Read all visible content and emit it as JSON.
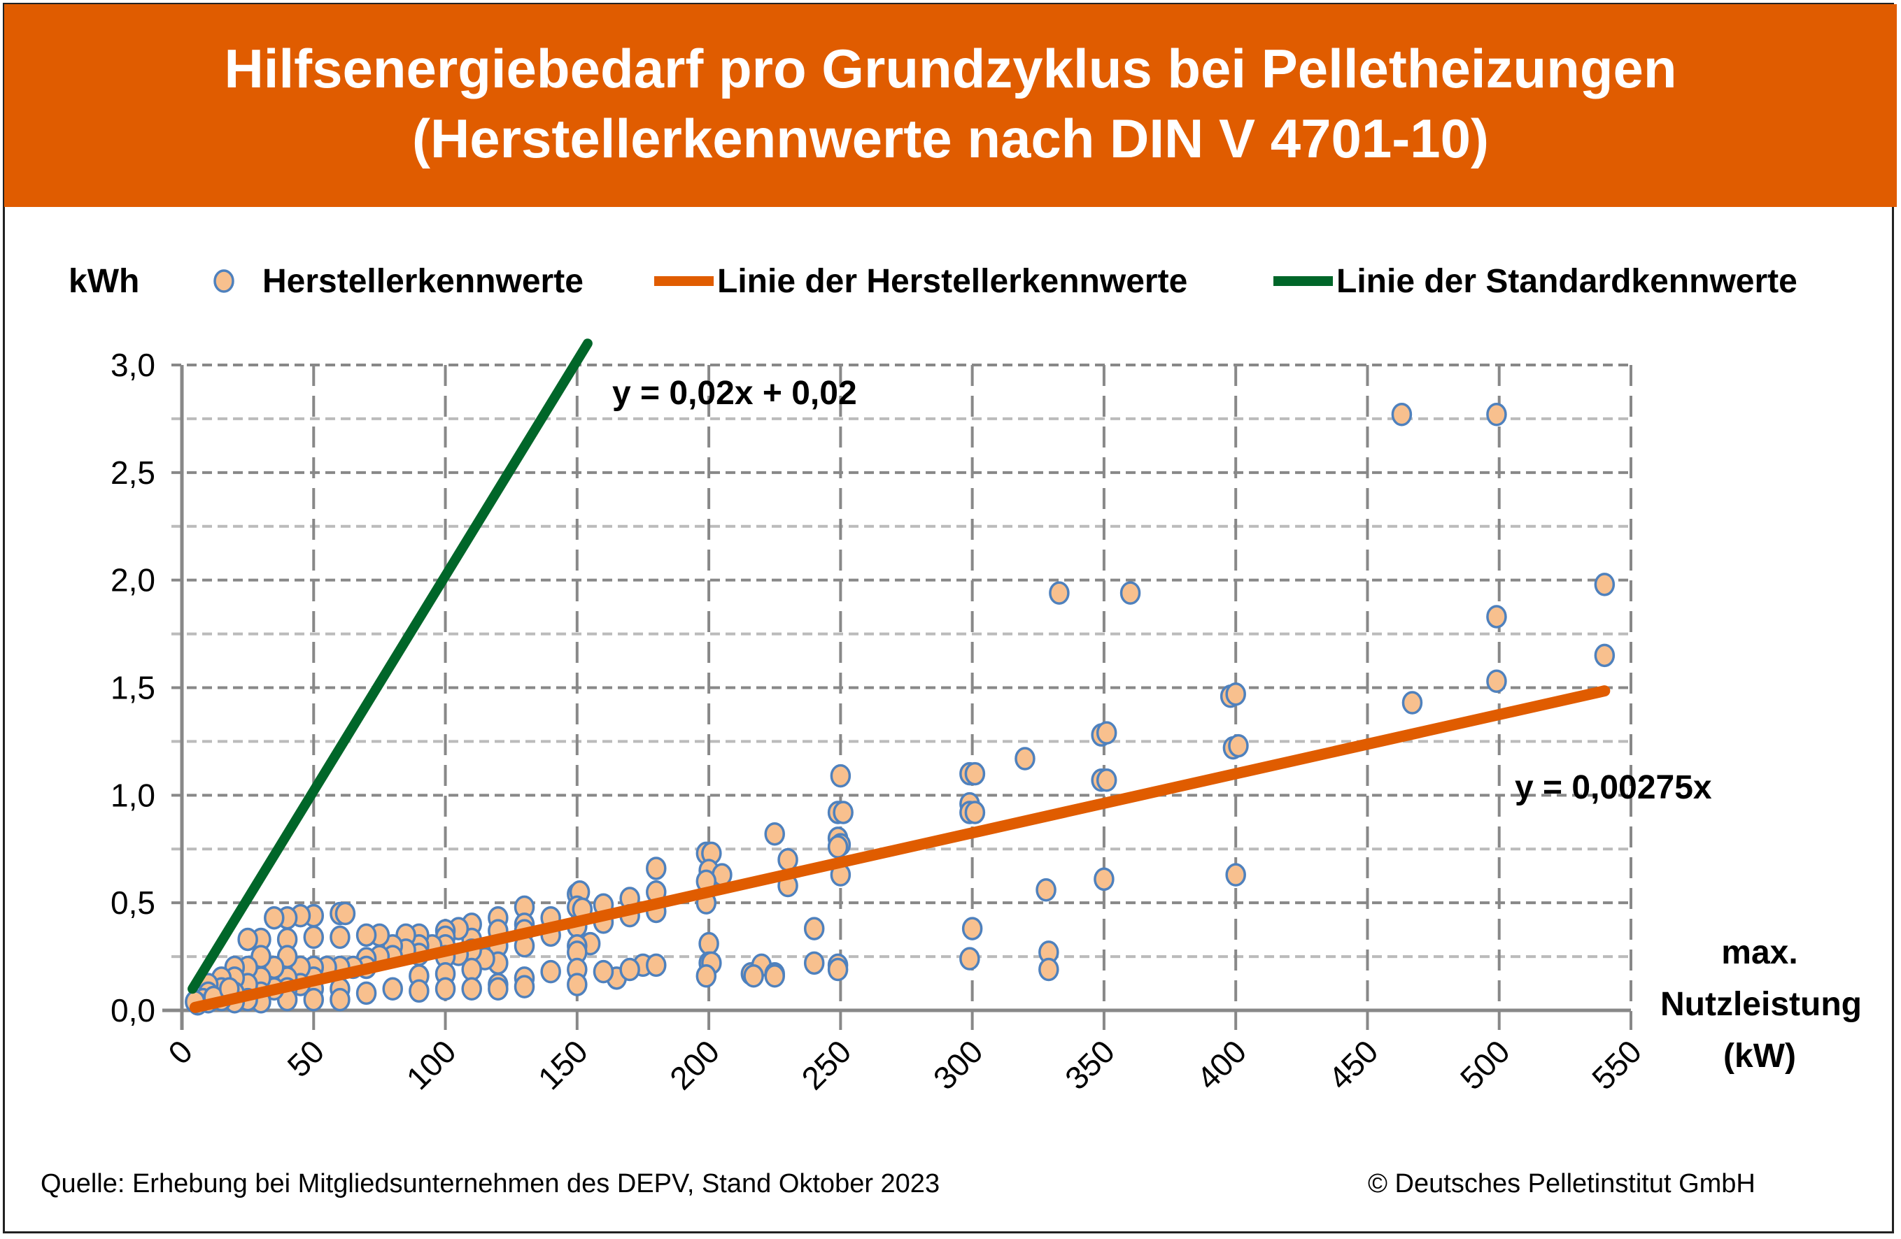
{
  "chart_data": {
    "type": "scatter",
    "title": "Hilfsenergiebedarf pro Grundzyklus bei Pelletheizungen",
    "subtitle": "(Herstellerkennwerte nach DIN V 4701-10)",
    "ylabel": "kWh",
    "xlabel": [
      "max.",
      "Nutzleistung",
      "(kW)"
    ],
    "xlim": [
      0,
      550
    ],
    "ylim": [
      0,
      3.0
    ],
    "xticks": [
      "0",
      "50",
      "100",
      "150",
      "200",
      "250",
      "300",
      "350",
      "400",
      "450",
      "500",
      "550"
    ],
    "yticks": [
      "0,0",
      "0,5",
      "1,0",
      "1,5",
      "2,0",
      "2,5",
      "3,0"
    ],
    "grid": true,
    "legend_position": "top",
    "legend": [
      "Herstellerkennwerte",
      "Linie der Herstellerkennwerte",
      "Linie der Standardkennwerte"
    ],
    "colors": {
      "points_fill": "#F8C08E",
      "points_stroke": "#4F81BD",
      "hersteller_line": "#E05C00",
      "standard_line": "#006629",
      "title_bg": "#E05C00"
    },
    "series": [
      {
        "name": "Herstellerkennwerte",
        "type": "scatter",
        "points": [
          [
            463,
            2.77
          ],
          [
            499,
            2.77
          ],
          [
            333,
            1.94
          ],
          [
            360,
            1.94
          ],
          [
            540,
            1.98
          ],
          [
            499,
            1.83
          ],
          [
            540,
            1.65
          ],
          [
            499,
            1.53
          ],
          [
            467,
            1.43
          ],
          [
            398,
            1.46
          ],
          [
            400,
            1.47
          ],
          [
            399,
            1.22
          ],
          [
            401,
            1.23
          ],
          [
            349,
            1.28
          ],
          [
            351,
            1.29
          ],
          [
            349,
            1.07
          ],
          [
            351,
            1.07
          ],
          [
            320,
            1.17
          ],
          [
            299,
            1.1
          ],
          [
            301,
            1.1
          ],
          [
            299,
            0.96
          ],
          [
            299,
            0.92
          ],
          [
            301,
            0.92
          ],
          [
            350,
            0.61
          ],
          [
            400,
            0.63
          ],
          [
            328,
            0.56
          ],
          [
            300,
            0.38
          ],
          [
            299,
            0.24
          ],
          [
            329,
            0.27
          ],
          [
            329,
            0.19
          ],
          [
            250,
            1.09
          ],
          [
            249,
            0.92
          ],
          [
            251,
            0.92
          ],
          [
            249,
            0.8
          ],
          [
            250,
            0.77
          ],
          [
            249,
            0.76
          ],
          [
            250,
            0.63
          ],
          [
            225,
            0.82
          ],
          [
            230,
            0.7
          ],
          [
            230,
            0.58
          ],
          [
            240,
            0.38
          ],
          [
            240,
            0.22
          ],
          [
            249,
            0.21
          ],
          [
            249,
            0.19
          ],
          [
            216,
            0.17
          ],
          [
            220,
            0.21
          ],
          [
            225,
            0.17
          ],
          [
            225,
            0.16
          ],
          [
            217,
            0.16
          ],
          [
            199,
            0.73
          ],
          [
            201,
            0.73
          ],
          [
            200,
            0.65
          ],
          [
            205,
            0.63
          ],
          [
            199,
            0.6
          ],
          [
            199,
            0.5
          ],
          [
            200,
            0.31
          ],
          [
            200,
            0.22
          ],
          [
            201,
            0.22
          ],
          [
            199,
            0.16
          ],
          [
            180,
            0.66
          ],
          [
            180,
            0.55
          ],
          [
            180,
            0.46
          ],
          [
            175,
            0.21
          ],
          [
            180,
            0.21
          ],
          [
            170,
            0.52
          ],
          [
            170,
            0.44
          ],
          [
            165,
            0.15
          ],
          [
            170,
            0.19
          ],
          [
            160,
            0.49
          ],
          [
            160,
            0.41
          ],
          [
            155,
            0.31
          ],
          [
            160,
            0.18
          ],
          [
            150,
            0.54
          ],
          [
            151,
            0.55
          ],
          [
            150,
            0.48
          ],
          [
            150,
            0.39
          ],
          [
            150,
            0.3
          ],
          [
            150,
            0.27
          ],
          [
            150,
            0.19
          ],
          [
            150,
            0.12
          ],
          [
            152,
            0.47
          ],
          [
            140,
            0.43
          ],
          [
            140,
            0.35
          ],
          [
            140,
            0.18
          ],
          [
            130,
            0.48
          ],
          [
            130,
            0.4
          ],
          [
            130,
            0.37
          ],
          [
            130,
            0.3
          ],
          [
            130,
            0.15
          ],
          [
            130,
            0.11
          ],
          [
            120,
            0.43
          ],
          [
            120,
            0.37
          ],
          [
            120,
            0.3
          ],
          [
            120,
            0.22
          ],
          [
            120,
            0.12
          ],
          [
            120,
            0.1
          ],
          [
            115,
            0.24
          ],
          [
            110,
            0.4
          ],
          [
            110,
            0.33
          ],
          [
            110,
            0.28
          ],
          [
            110,
            0.19
          ],
          [
            110,
            0.1
          ],
          [
            105,
            0.38
          ],
          [
            105,
            0.26
          ],
          [
            100,
            0.37
          ],
          [
            100,
            0.34
          ],
          [
            100,
            0.3
          ],
          [
            100,
            0.25
          ],
          [
            100,
            0.17
          ],
          [
            100,
            0.1
          ],
          [
            95,
            0.3
          ],
          [
            90,
            0.35
          ],
          [
            90,
            0.3
          ],
          [
            90,
            0.26
          ],
          [
            90,
            0.16
          ],
          [
            90,
            0.09
          ],
          [
            85,
            0.35
          ],
          [
            85,
            0.28
          ],
          [
            80,
            0.3
          ],
          [
            80,
            0.25
          ],
          [
            80,
            0.1
          ],
          [
            75,
            0.35
          ],
          [
            75,
            0.25
          ],
          [
            70,
            0.35
          ],
          [
            70,
            0.24
          ],
          [
            70,
            0.2
          ],
          [
            70,
            0.08
          ],
          [
            65,
            0.2
          ],
          [
            60,
            0.45
          ],
          [
            62,
            0.45
          ],
          [
            60,
            0.34
          ],
          [
            60,
            0.2
          ],
          [
            60,
            0.1
          ],
          [
            60,
            0.05
          ],
          [
            55,
            0.2
          ],
          [
            50,
            0.44
          ],
          [
            45,
            0.44
          ],
          [
            50,
            0.34
          ],
          [
            50,
            0.2
          ],
          [
            50,
            0.15
          ],
          [
            50,
            0.1
          ],
          [
            50,
            0.05
          ],
          [
            45,
            0.2
          ],
          [
            45,
            0.12
          ],
          [
            40,
            0.43
          ],
          [
            35,
            0.43
          ],
          [
            40,
            0.33
          ],
          [
            40,
            0.25
          ],
          [
            40,
            0.15
          ],
          [
            40,
            0.1
          ],
          [
            40,
            0.05
          ],
          [
            35,
            0.2
          ],
          [
            35,
            0.1
          ],
          [
            30,
            0.33
          ],
          [
            30,
            0.25
          ],
          [
            30,
            0.15
          ],
          [
            30,
            0.08
          ],
          [
            30,
            0.04
          ],
          [
            25,
            0.33
          ],
          [
            25,
            0.2
          ],
          [
            25,
            0.12
          ],
          [
            25,
            0.05
          ],
          [
            20,
            0.2
          ],
          [
            20,
            0.15
          ],
          [
            20,
            0.08
          ],
          [
            20,
            0.04
          ],
          [
            15,
            0.15
          ],
          [
            15,
            0.1
          ],
          [
            15,
            0.05
          ],
          [
            10,
            0.12
          ],
          [
            10,
            0.08
          ],
          [
            10,
            0.04
          ],
          [
            8,
            0.05
          ],
          [
            6,
            0.03
          ],
          [
            5,
            0.04
          ],
          [
            12,
            0.06
          ],
          [
            18,
            0.1
          ]
        ]
      },
      {
        "name": "Linie der Herstellerkennwerte",
        "type": "line",
        "slope": 0.00275,
        "intercept": 0,
        "x_range": [
          5,
          540
        ],
        "equation": "y = 0,00275x"
      },
      {
        "name": "Linie der Standardkennwerte",
        "type": "line",
        "slope": 0.02,
        "intercept": 0.02,
        "x_range": [
          4,
          154
        ],
        "equation": "y = 0,02x + 0,02"
      }
    ]
  },
  "footer": {
    "source": "Quelle: Erhebung bei  Mitgliedsunternehmen des DEPV, Stand Oktober 2023",
    "copyright": "© Deutsches Pelletinstitut GmbH"
  }
}
